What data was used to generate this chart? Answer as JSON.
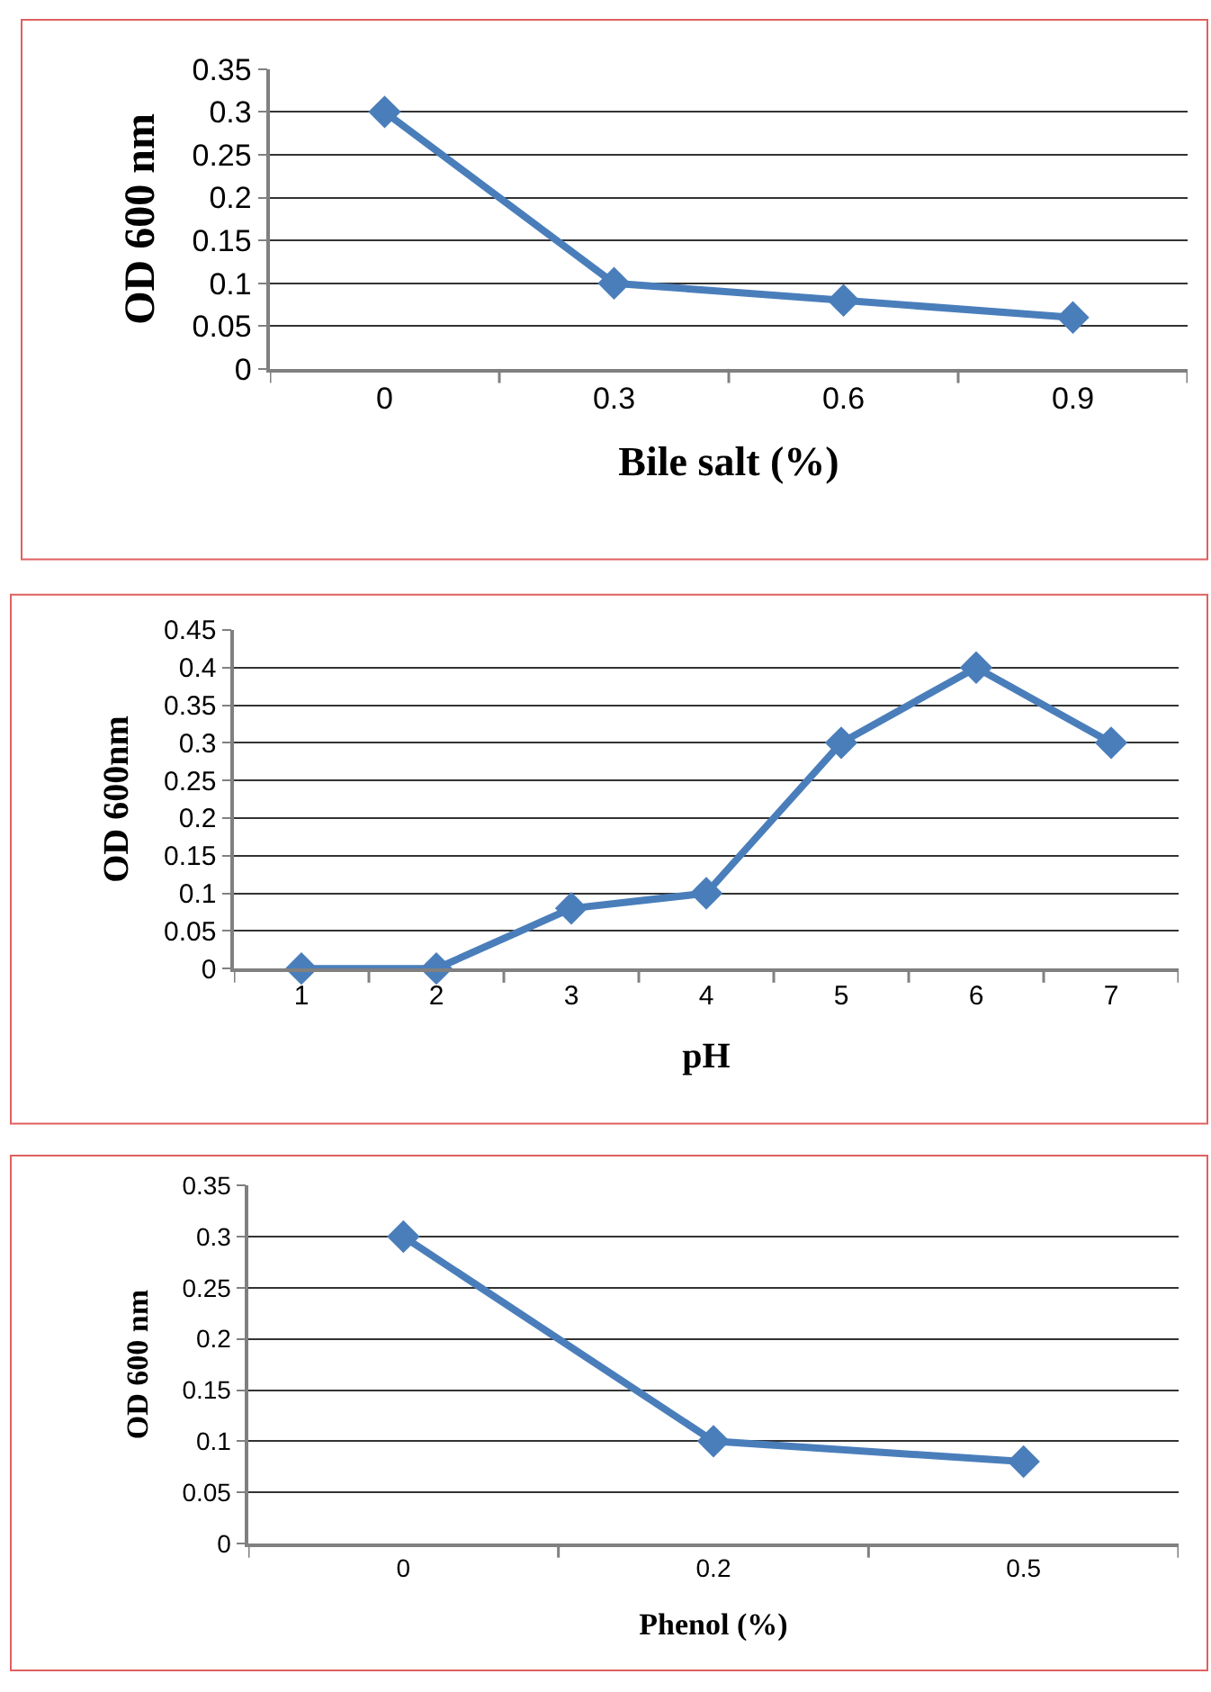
{
  "chart_data": [
    {
      "type": "line",
      "xlabel": "Bile salt (%)",
      "ylabel": "OD 600 nm",
      "categories": [
        "0",
        "0.3",
        "0.6",
        "0.9"
      ],
      "series": [
        {
          "color": "#4a7ebb",
          "values": [
            0.3,
            0.1,
            0.08,
            0.06
          ]
        }
      ],
      "ylim": [
        0,
        0.35
      ],
      "yticks": [
        0,
        0.05,
        0.1,
        0.15,
        0.2,
        0.25,
        0.3,
        0.35
      ],
      "grid": "y",
      "marker": "diamond",
      "line_style": "solid"
    },
    {
      "type": "line",
      "xlabel": "pH",
      "ylabel": "OD 600nm",
      "categories": [
        "1",
        "2",
        "3",
        "4",
        "5",
        "6",
        "7"
      ],
      "series": [
        {
          "color": "#4a7ebb",
          "values": [
            0,
            0,
            0.08,
            0.1,
            0.3,
            0.4,
            0.3
          ]
        }
      ],
      "ylim": [
        0,
        0.45
      ],
      "yticks": [
        0,
        0.05,
        0.1,
        0.15,
        0.2,
        0.25,
        0.3,
        0.35,
        0.4,
        0.45
      ],
      "grid": "y",
      "marker": "diamond",
      "line_style": "solid"
    },
    {
      "type": "line",
      "xlabel": "Phenol (%)",
      "ylabel": "OD 600 nm",
      "categories": [
        "0",
        "0.2",
        "0.5"
      ],
      "series": [
        {
          "color": "#4a7ebb",
          "values": [
            0.3,
            0.1,
            0.08
          ]
        }
      ],
      "ylim": [
        0,
        0.35
      ],
      "yticks": [
        0,
        0.05,
        0.1,
        0.15,
        0.2,
        0.25,
        0.3,
        0.35
      ],
      "grid": "y",
      "marker": "diamond",
      "line_style": "solid"
    }
  ]
}
